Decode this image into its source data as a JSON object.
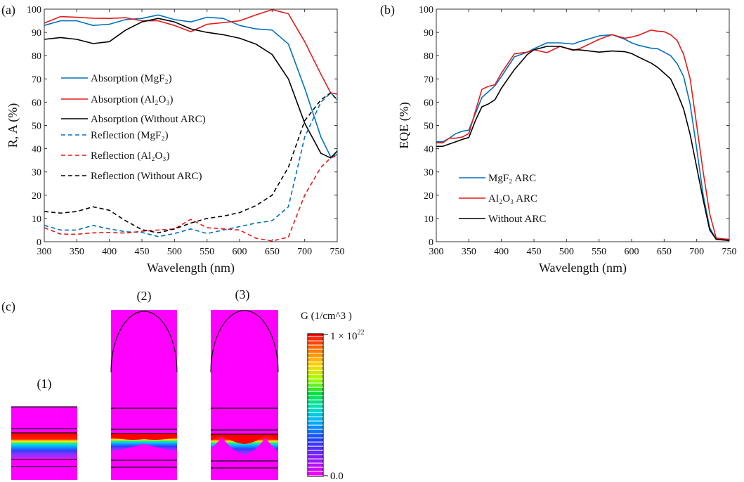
{
  "panels": {
    "a": "(a)",
    "b": "(b)",
    "c": "(c)"
  },
  "chart_data": [
    {
      "type": "line",
      "panel": "a",
      "xlabel": "Wavelength (nm)",
      "ylabel": "R, A (%)",
      "xlim": [
        300,
        750
      ],
      "ylim": [
        0,
        100
      ],
      "xticks": [
        300,
        350,
        400,
        450,
        500,
        550,
        600,
        650,
        700,
        750
      ],
      "yticks": [
        0,
        10,
        20,
        30,
        40,
        50,
        60,
        70,
        80,
        90,
        100
      ],
      "grid": false,
      "legend_position": "center-left",
      "x": [
        300,
        325,
        350,
        375,
        400,
        425,
        450,
        475,
        500,
        525,
        550,
        575,
        600,
        625,
        650,
        675,
        700,
        725,
        740,
        750
      ],
      "series": [
        {
          "name": "Absorption (MgF₂)",
          "color": "#0072BD",
          "dash": false,
          "values": [
            93,
            95,
            95,
            93,
            93.5,
            95.5,
            96,
            97.5,
            95.5,
            94.5,
            96.5,
            96,
            93,
            91.5,
            91,
            85,
            66,
            45,
            36.5,
            37.5
          ]
        },
        {
          "name": "Absorption (Al₂O₃)",
          "color": "#E31A1C",
          "dash": false,
          "values": [
            94,
            96.8,
            96.5,
            96.1,
            96,
            96.3,
            95,
            95,
            93,
            90.3,
            93.5,
            94.2,
            95,
            97.5,
            99.8,
            98,
            86,
            72,
            64,
            63.5
          ]
        },
        {
          "name": "Absorption (Without ARC)",
          "color": "#000000",
          "dash": false,
          "values": [
            87,
            87.8,
            87,
            85.2,
            86,
            91,
            94.5,
            96,
            94.5,
            91.5,
            90,
            89,
            87.5,
            85,
            80.5,
            70,
            51,
            38,
            36,
            39
          ]
        },
        {
          "name": "Reflection (MgF₂)",
          "color": "#0072BD",
          "dash": true,
          "values": [
            7,
            5,
            5,
            7,
            5.5,
            4.3,
            4,
            2.2,
            3.5,
            5.5,
            3.5,
            5,
            6.5,
            8,
            9,
            15,
            45,
            60,
            64,
            61
          ]
        },
        {
          "name": "Reflection (Al₂O₃)",
          "color": "#E31A1C",
          "dash": true,
          "values": [
            6,
            3.3,
            3.2,
            3.8,
            4,
            3.7,
            4.5,
            5,
            5.5,
            9.6,
            6,
            5.5,
            5,
            1.5,
            0.3,
            2,
            20,
            32,
            36,
            37
          ]
        },
        {
          "name": "Reflection (Without ARC)",
          "color": "#000000",
          "dash": true,
          "values": [
            13,
            12.3,
            13,
            15,
            13.5,
            9,
            5.2,
            3.8,
            5.5,
            8,
            10,
            11,
            12.5,
            15.5,
            20,
            32,
            52,
            61,
            64,
            61
          ]
        }
      ]
    },
    {
      "type": "line",
      "panel": "b",
      "xlabel": "Wavelength (nm)",
      "ylabel": "EQE (%)",
      "xlim": [
        300,
        750
      ],
      "ylim": [
        0,
        100
      ],
      "xticks": [
        300,
        350,
        400,
        450,
        500,
        550,
        600,
        650,
        700,
        750
      ],
      "yticks": [
        0,
        10,
        20,
        30,
        40,
        50,
        60,
        70,
        80,
        90,
        100
      ],
      "grid": false,
      "legend_position": "lower-left",
      "x": [
        300,
        310,
        320,
        330,
        340,
        350,
        360,
        370,
        380,
        390,
        400,
        420,
        440,
        450,
        470,
        490,
        510,
        520,
        550,
        570,
        590,
        600,
        610,
        630,
        640,
        650,
        660,
        670,
        680,
        690,
        700,
        710,
        720,
        730,
        750
      ],
      "series": [
        {
          "name": "MgF₂ ARC",
          "color": "#0072BD",
          "dash": false,
          "values": [
            43,
            43,
            44.5,
            46.5,
            47.5,
            48,
            55,
            62,
            64.5,
            67,
            71,
            79.5,
            81.5,
            83,
            85.5,
            85.5,
            85,
            86,
            88.5,
            89,
            87,
            85.5,
            84.5,
            83.2,
            83,
            81.5,
            80,
            76.5,
            71,
            59,
            40,
            20,
            6,
            1,
            1
          ]
        },
        {
          "name": "Al₂O₃ ARC",
          "color": "#E31A1C",
          "dash": false,
          "values": [
            42.5,
            42.5,
            44.5,
            44.5,
            45,
            46.5,
            56,
            65.5,
            66.8,
            67.5,
            72.5,
            80.8,
            81.5,
            82.5,
            81.3,
            84,
            82.3,
            83,
            87,
            89,
            87.5,
            88,
            88.7,
            91,
            90.5,
            90.3,
            89,
            86.5,
            80.5,
            70,
            50,
            30,
            12,
            1.5,
            1
          ]
        },
        {
          "name": "Without ARC",
          "color": "#000000",
          "dash": false,
          "values": [
            41,
            41,
            42,
            43,
            44,
            44.8,
            52,
            58,
            59.2,
            61,
            66,
            74,
            80.5,
            82.5,
            84,
            84,
            82.5,
            82.5,
            81.5,
            82,
            81.7,
            80.9,
            79.5,
            76.8,
            75,
            72.5,
            70,
            64,
            57,
            46,
            32,
            18,
            5,
            1,
            0.5
          ]
        }
      ]
    }
  ],
  "maps": {
    "titles": [
      "(1)",
      "(2)",
      "(3)"
    ],
    "colorbar": {
      "title": "G (1/cm^3 )",
      "max_label": "1 × 10",
      "max_exp": "22",
      "min_label": "0.0"
    }
  }
}
